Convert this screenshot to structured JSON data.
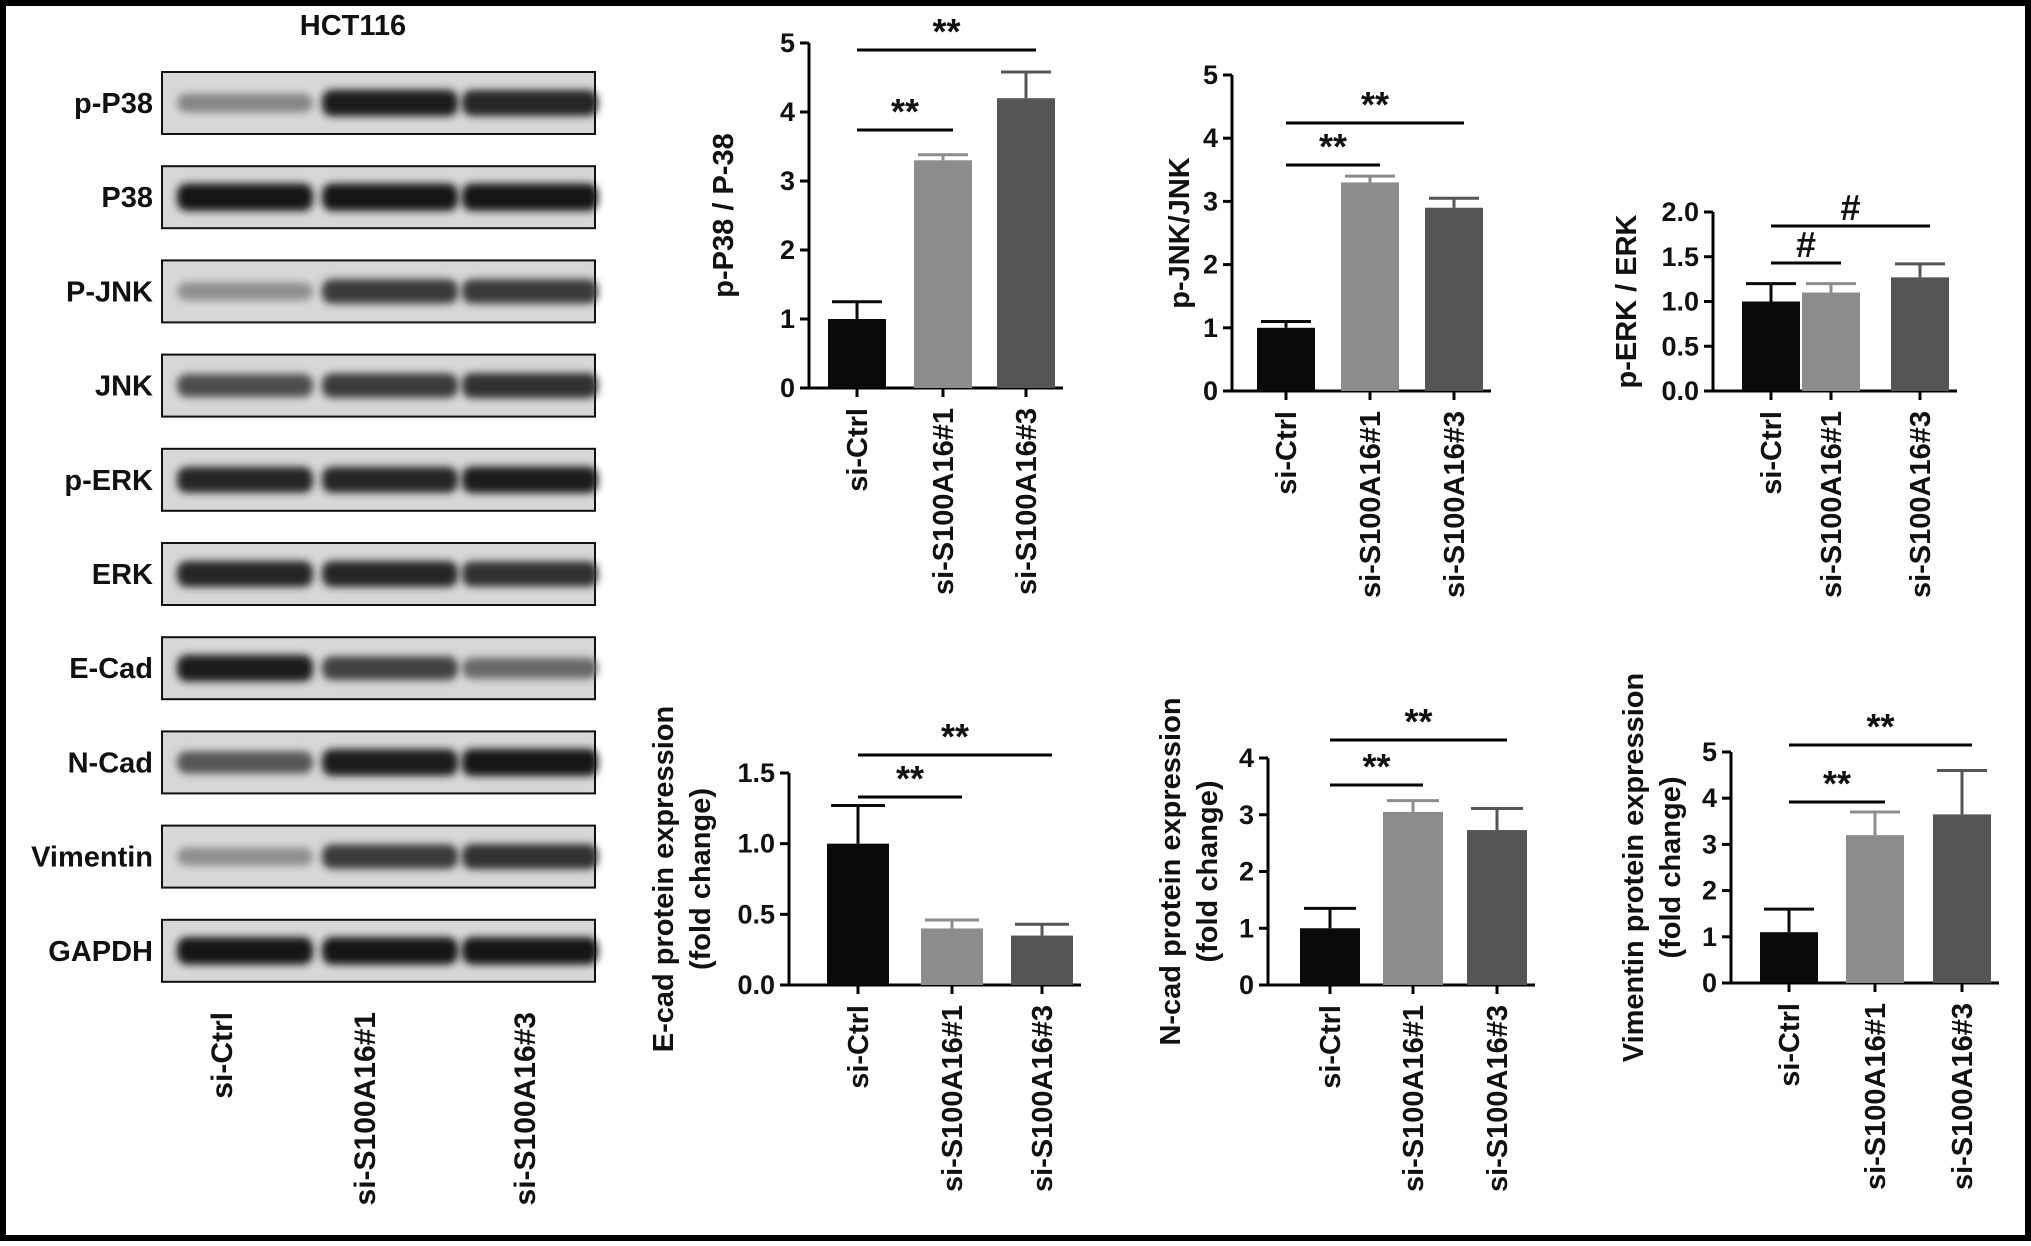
{
  "figure": {
    "blot": {
      "title": "HCT116",
      "bands": [
        {
          "label": "p-P38",
          "intensity": [
            0.35,
            0.9,
            0.85
          ]
        },
        {
          "label": "P38",
          "intensity": [
            0.95,
            0.95,
            0.95
          ]
        },
        {
          "label": "P-JNK",
          "intensity": [
            0.3,
            0.75,
            0.75
          ]
        },
        {
          "label": "JNK",
          "intensity": [
            0.65,
            0.75,
            0.8
          ]
        },
        {
          "label": "p-ERK",
          "intensity": [
            0.85,
            0.85,
            0.9
          ]
        },
        {
          "label": "ERK",
          "intensity": [
            0.85,
            0.85,
            0.8
          ]
        },
        {
          "label": "E-Cad",
          "intensity": [
            0.9,
            0.7,
            0.5
          ]
        },
        {
          "label": "N-Cad",
          "intensity": [
            0.6,
            0.9,
            0.95
          ]
        },
        {
          "label": "Vimentin",
          "intensity": [
            0.3,
            0.75,
            0.8
          ]
        },
        {
          "label": "GAPDH",
          "intensity": [
            0.95,
            0.95,
            0.95
          ]
        }
      ],
      "lanes": [
        "si-Ctrl",
        "si-S100A16#1",
        "si-S100A16#3"
      ]
    }
  },
  "chart_data": [
    {
      "type": "bar",
      "ylabel": "p-P38 / P-38",
      "categories": [
        "si-Ctrl",
        "si-S100A16#1",
        "si-S100A16#3"
      ],
      "values": [
        1.0,
        3.3,
        4.2
      ],
      "errors": [
        0.25,
        0.08,
        0.38
      ],
      "ylim": [
        0,
        5
      ],
      "yticks": [
        "0",
        "1",
        "2",
        "3",
        "4",
        "5"
      ],
      "bar_colors": [
        "#0a0a0a",
        "#8c8c8c",
        "#555555"
      ],
      "significance": [
        {
          "from": 0,
          "to": 1,
          "label": "**"
        },
        {
          "from": 0,
          "to": 2,
          "label": "**"
        }
      ]
    },
    {
      "type": "bar",
      "ylabel": "p-JNK/JNK",
      "categories": [
        "si-Ctrl",
        "si-S100A16#1",
        "si-S100A16#3"
      ],
      "values": [
        1.0,
        3.3,
        2.9
      ],
      "errors": [
        0.1,
        0.1,
        0.15
      ],
      "ylim": [
        0,
        5
      ],
      "yticks": [
        "0",
        "1",
        "2",
        "3",
        "4",
        "5"
      ],
      "bar_colors": [
        "#0a0a0a",
        "#8c8c8c",
        "#555555"
      ],
      "significance": [
        {
          "from": 0,
          "to": 1,
          "label": "**"
        },
        {
          "from": 0,
          "to": 2,
          "label": "**"
        }
      ]
    },
    {
      "type": "bar",
      "ylabel": "p-ERK / ERK",
      "categories": [
        "si-Ctrl",
        "si-S100A16#1",
        "si-S100A16#3"
      ],
      "values": [
        1.0,
        1.1,
        1.27
      ],
      "errors": [
        0.2,
        0.1,
        0.15
      ],
      "ylim": [
        0,
        2.0
      ],
      "yticks": [
        "0.0",
        "0.5",
        "1.0",
        "1.5",
        "2.0"
      ],
      "bar_colors": [
        "#0a0a0a",
        "#8c8c8c",
        "#555555"
      ],
      "significance": [
        {
          "from": 0,
          "to": 1,
          "label": "#"
        },
        {
          "from": 0,
          "to": 2,
          "label": "#"
        }
      ]
    },
    {
      "type": "bar",
      "ylabel": "E-cad protein expression\n(fold change)",
      "categories": [
        "si-Ctrl",
        "si-S100A16#1",
        "si-S100A16#3"
      ],
      "values": [
        1.0,
        0.4,
        0.35
      ],
      "errors": [
        0.27,
        0.06,
        0.08
      ],
      "ylim": [
        0,
        1.5
      ],
      "yticks": [
        "0.0",
        "0.5",
        "1.0",
        "1.5"
      ],
      "bar_colors": [
        "#0a0a0a",
        "#8c8c8c",
        "#555555"
      ],
      "significance": [
        {
          "from": 0,
          "to": 1,
          "label": "**"
        },
        {
          "from": 0,
          "to": 2,
          "label": "**"
        }
      ]
    },
    {
      "type": "bar",
      "ylabel": "N-cad protein expression\n(fold change)",
      "categories": [
        "si-Ctrl",
        "si-S100A16#1",
        "si-S100A16#3"
      ],
      "values": [
        1.0,
        3.05,
        2.73
      ],
      "errors": [
        0.35,
        0.2,
        0.38
      ],
      "ylim": [
        0,
        4
      ],
      "yticks": [
        "0",
        "1",
        "2",
        "3",
        "4"
      ],
      "bar_colors": [
        "#0a0a0a",
        "#8c8c8c",
        "#555555"
      ],
      "significance": [
        {
          "from": 0,
          "to": 1,
          "label": "**"
        },
        {
          "from": 0,
          "to": 2,
          "label": "**"
        }
      ]
    },
    {
      "type": "bar",
      "ylabel": "Vimentin protein expression\n(fold change)",
      "categories": [
        "si-Ctrl",
        "si-S100A16#1",
        "si-S100A16#3"
      ],
      "values": [
        1.1,
        3.2,
        3.65
      ],
      "errors": [
        0.5,
        0.5,
        0.95
      ],
      "ylim": [
        0,
        5
      ],
      "yticks": [
        "0",
        "1",
        "2",
        "3",
        "4",
        "5"
      ],
      "bar_colors": [
        "#0a0a0a",
        "#8c8c8c",
        "#555555"
      ],
      "significance": [
        {
          "from": 0,
          "to": 1,
          "label": "**"
        },
        {
          "from": 0,
          "to": 2,
          "label": "**"
        }
      ]
    }
  ]
}
